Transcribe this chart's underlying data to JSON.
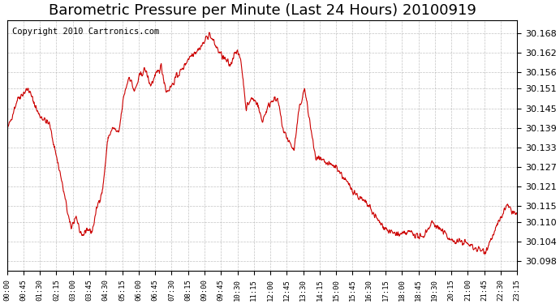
{
  "title": "Barometric Pressure per Minute (Last 24 Hours) 20100919",
  "copyright": "Copyright 2010 Cartronics.com",
  "line_color": "#cc0000",
  "bg_color": "#ffffff",
  "grid_color": "#aaaaaa",
  "ylim": [
    30.095,
    30.172
  ],
  "yticks": [
    30.098,
    30.104,
    30.11,
    30.115,
    30.121,
    30.127,
    30.133,
    30.139,
    30.145,
    30.151,
    30.156,
    30.162,
    30.168
  ],
  "xtick_labels": [
    "00:00",
    "00:45",
    "01:30",
    "02:15",
    "03:00",
    "03:45",
    "04:30",
    "05:15",
    "06:00",
    "06:45",
    "07:30",
    "08:15",
    "09:00",
    "09:45",
    "10:30",
    "11:15",
    "12:00",
    "12:45",
    "13:30",
    "14:15",
    "15:00",
    "15:45",
    "16:30",
    "17:15",
    "18:00",
    "18:45",
    "19:30",
    "20:15",
    "21:00",
    "21:45",
    "22:30",
    "23:15"
  ],
  "title_fontsize": 13,
  "copyright_fontsize": 7.5
}
